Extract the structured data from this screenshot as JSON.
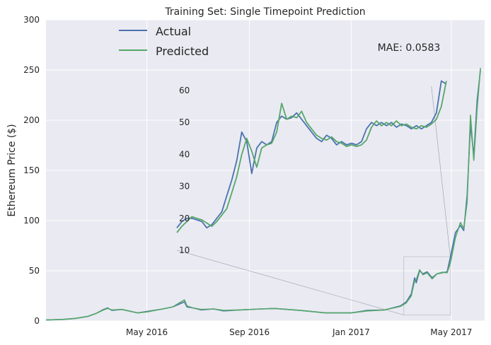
{
  "chart_data": {
    "type": "line",
    "title": "Training Set: Single Timepoint Prediction",
    "ylabel": "Ethereum Price ($)",
    "xlabel": "",
    "ylim": [
      0,
      300
    ],
    "yticks": [
      0,
      50,
      100,
      150,
      200,
      250,
      300
    ],
    "xlim": [
      "2016-01-01",
      "2017-06-10"
    ],
    "xticks": [
      {
        "label": "May 2016",
        "date": "2016-05-01"
      },
      {
        "label": "Sep 2016",
        "date": "2016-09-01"
      },
      {
        "label": "Jan 2017",
        "date": "2017-01-01"
      },
      {
        "label": "May 2017",
        "date": "2017-05-01"
      }
    ],
    "grid": true,
    "legend_position": "top-left",
    "annotation": "MAE: 0.0583",
    "colors": {
      "actual": "#4c72b0",
      "predicted": "#55a868",
      "background": "#eaeaf2"
    },
    "series": [
      {
        "name": "Actual",
        "points": [
          [
            "2016-01-01",
            1.0
          ],
          [
            "2016-01-20",
            1.5
          ],
          [
            "2016-02-05",
            2.5
          ],
          [
            "2016-02-20",
            4.5
          ],
          [
            "2016-03-01",
            7.5
          ],
          [
            "2016-03-10",
            11.5
          ],
          [
            "2016-03-15",
            13.0
          ],
          [
            "2016-03-20",
            10.5
          ],
          [
            "2016-04-01",
            11.5
          ],
          [
            "2016-04-20",
            8.0
          ],
          [
            "2016-05-01",
            9.5
          ],
          [
            "2016-05-20",
            12.0
          ],
          [
            "2016-06-01",
            14.0
          ],
          [
            "2016-06-15",
            19.0
          ],
          [
            "2016-06-18",
            14.0
          ],
          [
            "2016-06-25",
            13.0
          ],
          [
            "2016-07-05",
            11.0
          ],
          [
            "2016-07-20",
            12.0
          ],
          [
            "2016-08-01",
            10.0
          ],
          [
            "2016-08-20",
            11.0
          ],
          [
            "2016-09-15",
            12.0
          ],
          [
            "2016-10-01",
            12.5
          ],
          [
            "2016-11-01",
            10.5
          ],
          [
            "2016-12-01",
            8.0
          ],
          [
            "2017-01-01",
            8.0
          ],
          [
            "2017-01-20",
            10.5
          ],
          [
            "2017-02-10",
            11.0
          ],
          [
            "2017-03-01",
            15.0
          ],
          [
            "2017-03-08",
            19.0
          ],
          [
            "2017-03-14",
            27.0
          ],
          [
            "2017-03-18",
            43.0
          ],
          [
            "2017-03-20",
            38.0
          ],
          [
            "2017-03-24",
            50.0
          ],
          [
            "2017-03-28",
            47.0
          ],
          [
            "2017-04-02",
            49.0
          ],
          [
            "2017-04-08",
            43.0
          ],
          [
            "2017-04-14",
            47.0
          ],
          [
            "2017-04-20",
            48.0
          ],
          [
            "2017-04-26",
            49.0
          ],
          [
            "2017-04-30",
            64.0
          ],
          [
            "2017-05-06",
            88.0
          ],
          [
            "2017-05-12",
            95.0
          ],
          [
            "2017-05-16",
            90.0
          ],
          [
            "2017-05-20",
            125.0
          ],
          [
            "2017-05-24",
            195.0
          ],
          [
            "2017-05-28",
            165.0
          ],
          [
            "2017-06-01",
            220.0
          ],
          [
            "2017-06-05",
            250.0
          ]
        ]
      },
      {
        "name": "Predicted",
        "points": [
          [
            "2016-01-01",
            1.0
          ],
          [
            "2016-01-20",
            1.5
          ],
          [
            "2016-02-05",
            2.5
          ],
          [
            "2016-02-20",
            4.5
          ],
          [
            "2016-03-01",
            7.5
          ],
          [
            "2016-03-10",
            11.0
          ],
          [
            "2016-03-15",
            12.5
          ],
          [
            "2016-03-20",
            11.0
          ],
          [
            "2016-04-01",
            11.5
          ],
          [
            "2016-04-20",
            8.0
          ],
          [
            "2016-05-01",
            9.0
          ],
          [
            "2016-05-20",
            12.0
          ],
          [
            "2016-06-01",
            14.0
          ],
          [
            "2016-06-15",
            21.0
          ],
          [
            "2016-06-18",
            15.0
          ],
          [
            "2016-06-25",
            13.0
          ],
          [
            "2016-07-05",
            11.5
          ],
          [
            "2016-07-20",
            12.0
          ],
          [
            "2016-08-01",
            10.5
          ],
          [
            "2016-08-20",
            11.0
          ],
          [
            "2016-09-15",
            12.0
          ],
          [
            "2016-10-01",
            12.5
          ],
          [
            "2016-11-01",
            10.5
          ],
          [
            "2016-12-01",
            8.0
          ],
          [
            "2017-01-01",
            8.0
          ],
          [
            "2017-01-20",
            10.0
          ],
          [
            "2017-02-10",
            11.0
          ],
          [
            "2017-03-01",
            14.5
          ],
          [
            "2017-03-08",
            18.0
          ],
          [
            "2017-03-14",
            25.0
          ],
          [
            "2017-03-18",
            40.0
          ],
          [
            "2017-03-20",
            41.0
          ],
          [
            "2017-03-24",
            51.0
          ],
          [
            "2017-03-28",
            46.0
          ],
          [
            "2017-04-02",
            48.0
          ],
          [
            "2017-04-08",
            42.0
          ],
          [
            "2017-04-14",
            47.0
          ],
          [
            "2017-04-20",
            48.5
          ],
          [
            "2017-04-26",
            48.0
          ],
          [
            "2017-04-30",
            58.0
          ],
          [
            "2017-05-06",
            83.0
          ],
          [
            "2017-05-12",
            98.0
          ],
          [
            "2017-05-16",
            92.0
          ],
          [
            "2017-05-20",
            118.0
          ],
          [
            "2017-05-24",
            205.0
          ],
          [
            "2017-05-28",
            160.0
          ],
          [
            "2017-06-01",
            212.0
          ],
          [
            "2017-06-05",
            252.0
          ]
        ]
      }
    ],
    "inset": {
      "xlim": [
        "2017-03-05",
        "2017-04-30"
      ],
      "ylim": [
        6,
        64
      ],
      "yticks": [
        10,
        20,
        30,
        40,
        50,
        60
      ],
      "series": [
        {
          "name": "Actual",
          "points": [
            [
              "2017-03-05",
              17.0
            ],
            [
              "2017-03-06",
              19.0
            ],
            [
              "2017-03-07",
              20.0
            ],
            [
              "2017-03-08",
              20.0
            ],
            [
              "2017-03-09",
              19.5
            ],
            [
              "2017-03-10",
              19.0
            ],
            [
              "2017-03-11",
              17.0
            ],
            [
              "2017-03-12",
              18.0
            ],
            [
              "2017-03-13",
              20.0
            ],
            [
              "2017-03-14",
              22.0
            ],
            [
              "2017-03-15",
              27.0
            ],
            [
              "2017-03-16",
              32.0
            ],
            [
              "2017-03-17",
              38.0
            ],
            [
              "2017-03-18",
              47.0
            ],
            [
              "2017-03-19",
              44.0
            ],
            [
              "2017-03-20",
              34.0
            ],
            [
              "2017-03-21",
              42.0
            ],
            [
              "2017-03-22",
              44.0
            ],
            [
              "2017-03-23",
              43.0
            ],
            [
              "2017-03-24",
              44.0
            ],
            [
              "2017-03-25",
              50.0
            ],
            [
              "2017-03-26",
              52.0
            ],
            [
              "2017-03-27",
              51.0
            ],
            [
              "2017-03-28",
              51.5
            ],
            [
              "2017-03-29",
              53.0
            ],
            [
              "2017-03-30",
              51.0
            ],
            [
              "2017-03-31",
              49.0
            ],
            [
              "2017-04-01",
              47.0
            ],
            [
              "2017-04-02",
              45.0
            ],
            [
              "2017-04-03",
              44.0
            ],
            [
              "2017-04-04",
              46.0
            ],
            [
              "2017-04-05",
              45.0
            ],
            [
              "2017-04-06",
              43.0
            ],
            [
              "2017-04-07",
              44.0
            ],
            [
              "2017-04-08",
              43.0
            ],
            [
              "2017-04-09",
              43.5
            ],
            [
              "2017-04-10",
              43.0
            ],
            [
              "2017-04-11",
              44.0
            ],
            [
              "2017-04-12",
              48.0
            ],
            [
              "2017-04-13",
              50.0
            ],
            [
              "2017-04-14",
              49.0
            ],
            [
              "2017-04-15",
              50.0
            ],
            [
              "2017-04-16",
              49.0
            ],
            [
              "2017-04-17",
              50.0
            ],
            [
              "2017-04-18",
              48.5
            ],
            [
              "2017-04-19",
              49.5
            ],
            [
              "2017-04-20",
              49.0
            ],
            [
              "2017-04-21",
              48.0
            ],
            [
              "2017-04-22",
              49.0
            ],
            [
              "2017-04-23",
              48.0
            ],
            [
              "2017-04-24",
              49.0
            ],
            [
              "2017-04-25",
              50.0
            ],
            [
              "2017-04-26",
              53.0
            ],
            [
              "2017-04-27",
              63.0
            ],
            [
              "2017-04-28",
              62.0
            ]
          ]
        },
        {
          "name": "Predicted",
          "points": [
            [
              "2017-03-05",
              15.5
            ],
            [
              "2017-03-06",
              17.5
            ],
            [
              "2017-03-07",
              19.0
            ],
            [
              "2017-03-08",
              20.5
            ],
            [
              "2017-03-09",
              20.0
            ],
            [
              "2017-03-10",
              19.5
            ],
            [
              "2017-03-11",
              18.5
            ],
            [
              "2017-03-12",
              17.5
            ],
            [
              "2017-03-13",
              19.0
            ],
            [
              "2017-03-14",
              21.0
            ],
            [
              "2017-03-15",
              23.0
            ],
            [
              "2017-03-16",
              28.0
            ],
            [
              "2017-03-17",
              33.0
            ],
            [
              "2017-03-18",
              40.0
            ],
            [
              "2017-03-19",
              45.0
            ],
            [
              "2017-03-20",
              41.0
            ],
            [
              "2017-03-21",
              36.0
            ],
            [
              "2017-03-22",
              42.0
            ],
            [
              "2017-03-23",
              43.0
            ],
            [
              "2017-03-24",
              43.5
            ],
            [
              "2017-03-25",
              47.0
            ],
            [
              "2017-03-26",
              56.0
            ],
            [
              "2017-03-27",
              51.0
            ],
            [
              "2017-03-28",
              52.0
            ],
            [
              "2017-03-29",
              51.5
            ],
            [
              "2017-03-30",
              53.5
            ],
            [
              "2017-03-31",
              50.0
            ],
            [
              "2017-04-01",
              48.0
            ],
            [
              "2017-04-02",
              46.0
            ],
            [
              "2017-04-03",
              45.0
            ],
            [
              "2017-04-04",
              44.5
            ],
            [
              "2017-04-05",
              45.5
            ],
            [
              "2017-04-06",
              44.0
            ],
            [
              "2017-04-07",
              43.5
            ],
            [
              "2017-04-08",
              42.5
            ],
            [
              "2017-04-09",
              43.0
            ],
            [
              "2017-04-10",
              42.5
            ],
            [
              "2017-04-11",
              43.0
            ],
            [
              "2017-04-12",
              44.5
            ],
            [
              "2017-04-13",
              48.5
            ],
            [
              "2017-04-14",
              50.5
            ],
            [
              "2017-04-15",
              49.0
            ],
            [
              "2017-04-16",
              50.0
            ],
            [
              "2017-04-17",
              49.0
            ],
            [
              "2017-04-18",
              50.5
            ],
            [
              "2017-04-19",
              49.0
            ],
            [
              "2017-04-20",
              49.5
            ],
            [
              "2017-04-21",
              48.5
            ],
            [
              "2017-04-22",
              48.0
            ],
            [
              "2017-04-23",
              49.0
            ],
            [
              "2017-04-24",
              48.5
            ],
            [
              "2017-04-25",
              49.5
            ],
            [
              "2017-04-26",
              51.0
            ],
            [
              "2017-04-27",
              55.0
            ],
            [
              "2017-04-28",
              63.0
            ]
          ]
        }
      ]
    }
  }
}
